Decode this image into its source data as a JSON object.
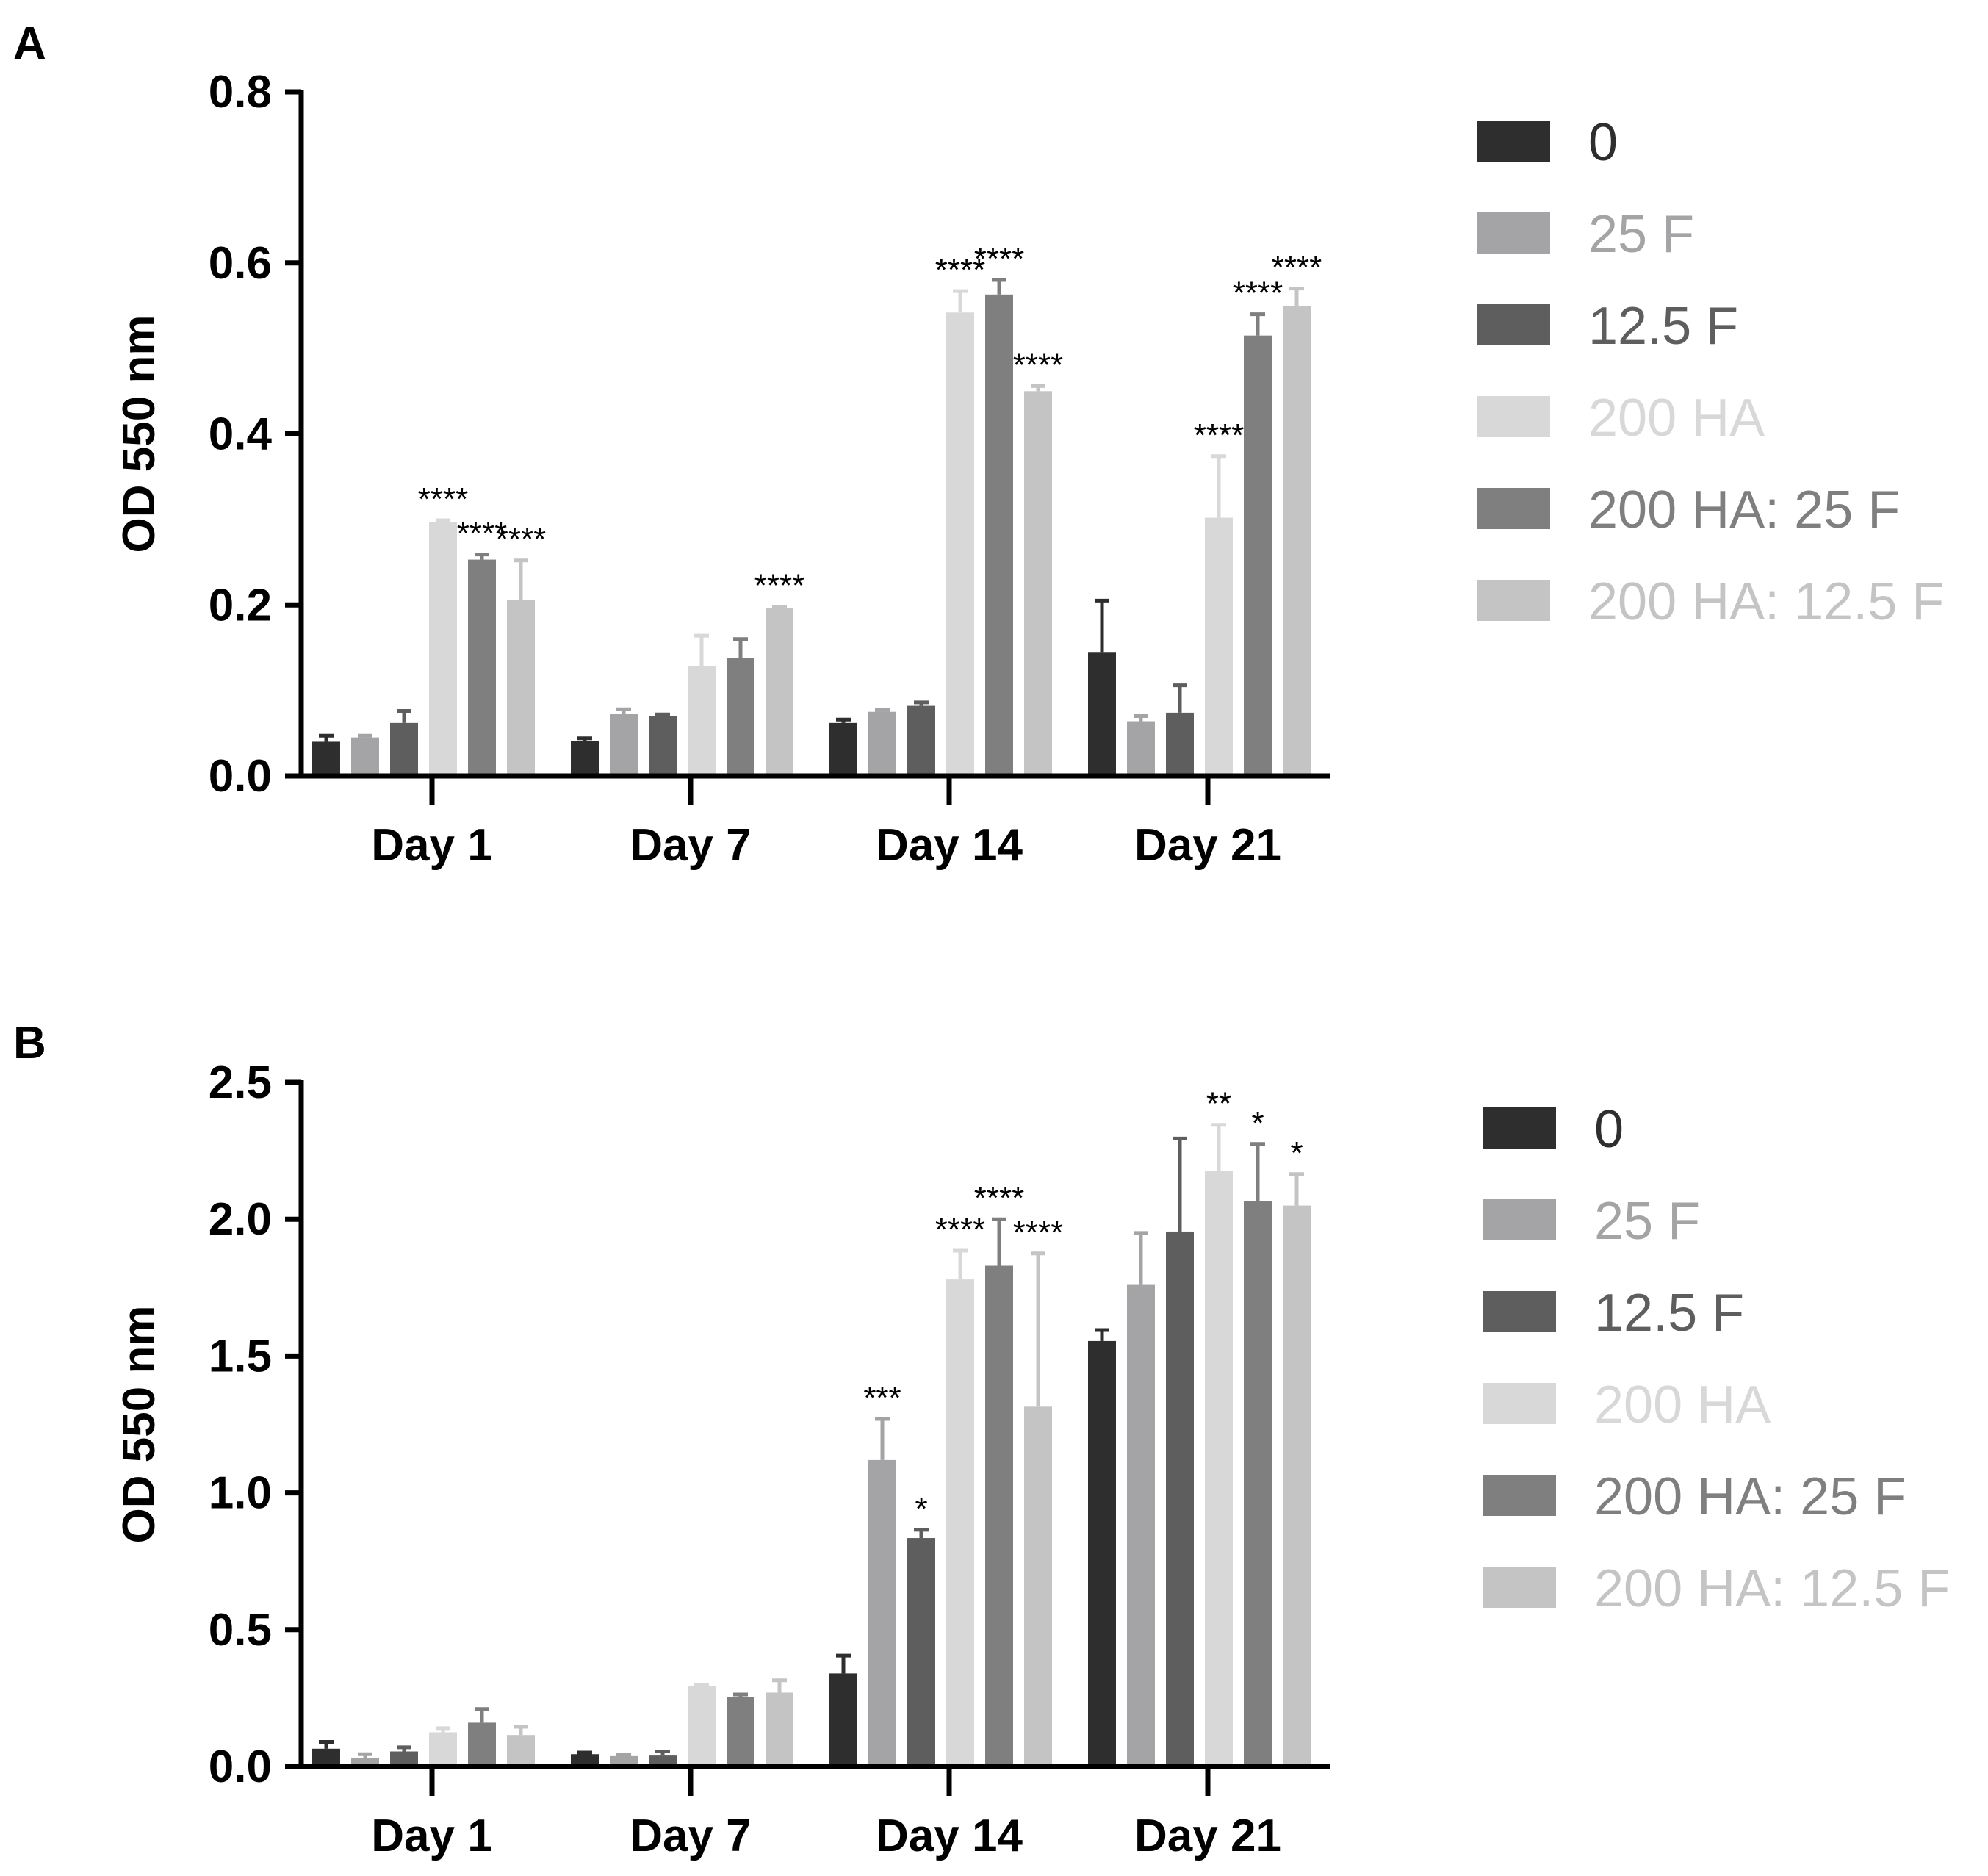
{
  "figure": {
    "series": [
      {
        "name": "0",
        "color": "#2e2e2e"
      },
      {
        "name": "25 F",
        "color": "#a4a4a6"
      },
      {
        "name": "12.5 F",
        "color": "#5e5e5e"
      },
      {
        "name": "200 HA",
        "color": "#d8d8d8"
      },
      {
        "name": "200 HA: 25 F",
        "color": "#7f7f7f"
      },
      {
        "name": "200 HA: 12.5 F",
        "color": "#c4c4c4"
      }
    ]
  },
  "chart_data": [
    {
      "type": "bar",
      "panel": "A",
      "title": "",
      "xlabel": "",
      "ylabel": "OD 550 nm",
      "ylim": [
        0,
        0.8
      ],
      "yticks": [
        "0.0",
        "0.2",
        "0.4",
        "0.6",
        "0.8"
      ],
      "categories": [
        "Day 1",
        "Day 7",
        "Day 14",
        "Day 21"
      ],
      "series": [
        {
          "name": "0",
          "values": [
            0.04,
            0.041,
            0.062,
            0.145
          ],
          "errors": [
            0.007,
            0.003,
            0.004,
            0.06
          ]
        },
        {
          "name": "25 F",
          "values": [
            0.045,
            0.073,
            0.075,
            0.064
          ],
          "errors": [
            0.002,
            0.005,
            0.002,
            0.006
          ]
        },
        {
          "name": "12.5 F",
          "values": [
            0.062,
            0.07,
            0.082,
            0.074
          ],
          "errors": [
            0.014,
            0.002,
            0.004,
            0.032
          ]
        },
        {
          "name": "200 HA",
          "values": [
            0.297,
            0.128,
            0.542,
            0.302
          ],
          "errors": [
            0.002,
            0.036,
            0.025,
            0.072
          ]
        },
        {
          "name": "200 HA: 25 F",
          "values": [
            0.253,
            0.138,
            0.563,
            0.515
          ],
          "errors": [
            0.006,
            0.022,
            0.017,
            0.025
          ]
        },
        {
          "name": "200 HA: 12.5 F",
          "values": [
            0.206,
            0.196,
            0.45,
            0.55
          ],
          "errors": [
            0.046,
            0.002,
            0.006,
            0.02
          ]
        }
      ],
      "annotations": [
        {
          "category": "Day 1",
          "series": "200 HA",
          "text": "****"
        },
        {
          "category": "Day 1",
          "series": "200 HA: 25 F",
          "text": "****"
        },
        {
          "category": "Day 1",
          "series": "200 HA: 12.5 F",
          "text": "****"
        },
        {
          "category": "Day 7",
          "series": "200 HA: 12.5 F",
          "text": "****"
        },
        {
          "category": "Day 14",
          "series": "200 HA",
          "text": "****"
        },
        {
          "category": "Day 14",
          "series": "200 HA: 25 F",
          "text": "****"
        },
        {
          "category": "Day 14",
          "series": "200 HA: 12.5 F",
          "text": "****"
        },
        {
          "category": "Day 21",
          "series": "200 HA",
          "text": "****"
        },
        {
          "category": "Day 21",
          "series": "200 HA: 25 F",
          "text": "****"
        },
        {
          "category": "Day 21",
          "series": "200 HA: 12.5 F",
          "text": "****"
        }
      ],
      "legend": "right"
    },
    {
      "type": "bar",
      "panel": "B",
      "title": "",
      "xlabel": "",
      "ylabel": "OD 550 nm",
      "ylim": [
        0,
        2.5
      ],
      "yticks": [
        "0.0",
        "0.5",
        "1.0",
        "1.5",
        "2.0",
        "2.5"
      ],
      "categories": [
        "Day 1",
        "Day 7",
        "Day 14",
        "Day 21"
      ],
      "series": [
        {
          "name": "0",
          "values": [
            0.065,
            0.045,
            0.34,
            1.555
          ],
          "errors": [
            0.025,
            0.006,
            0.065,
            0.04
          ]
        },
        {
          "name": "25 F",
          "values": [
            0.03,
            0.038,
            1.12,
            1.76
          ],
          "errors": [
            0.015,
            0.004,
            0.15,
            0.19
          ]
        },
        {
          "name": "12.5 F",
          "values": [
            0.055,
            0.04,
            0.835,
            1.955
          ],
          "errors": [
            0.015,
            0.015,
            0.03,
            0.34
          ]
        },
        {
          "name": "200 HA",
          "values": [
            0.125,
            0.295,
            1.78,
            2.175
          ],
          "errors": [
            0.015,
            0.003,
            0.105,
            0.17
          ]
        },
        {
          "name": "200 HA: 25 F",
          "values": [
            0.16,
            0.255,
            1.83,
            2.065
          ],
          "errors": [
            0.05,
            0.008,
            0.17,
            0.21
          ]
        },
        {
          "name": "200 HA: 12.5 F",
          "values": [
            0.115,
            0.27,
            1.315,
            2.05
          ],
          "errors": [
            0.03,
            0.045,
            0.56,
            0.115
          ]
        }
      ],
      "annotations": [
        {
          "category": "Day 14",
          "series": "25 F",
          "text": "***"
        },
        {
          "category": "Day 14",
          "series": "12.5 F",
          "text": "*"
        },
        {
          "category": "Day 14",
          "series": "200 HA",
          "text": "****"
        },
        {
          "category": "Day 14",
          "series": "200 HA: 25 F",
          "text": "****"
        },
        {
          "category": "Day 14",
          "series": "200 HA: 12.5 F",
          "text": "****"
        },
        {
          "category": "Day 21",
          "series": "200 HA",
          "text": "**"
        },
        {
          "category": "Day 21",
          "series": "200 HA: 25 F",
          "text": "*"
        },
        {
          "category": "Day 21",
          "series": "200 HA: 12.5 F",
          "text": "*"
        }
      ],
      "legend": "right"
    }
  ]
}
